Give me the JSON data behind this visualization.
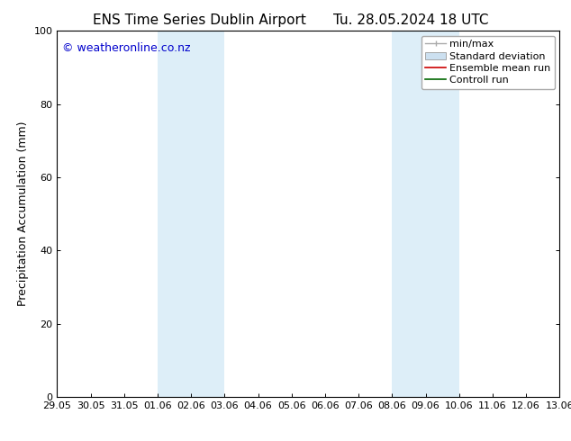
{
  "title_left": "ENS Time Series Dublin Airport",
  "title_right": "Tu. 28.05.2024 18 UTC",
  "ylabel": "Precipitation Accumulation (mm)",
  "ylim": [
    0,
    100
  ],
  "yticks": [
    0,
    20,
    40,
    60,
    80,
    100
  ],
  "watermark": "© weatheronline.co.nz",
  "watermark_color": "#0000cc",
  "background_color": "#ffffff",
  "plot_bg_color": "#ffffff",
  "shaded_color": "#ddeef8",
  "shaded_regions": [
    {
      "xstart": "01.06",
      "xend": "03.06"
    },
    {
      "xstart": "08.06",
      "xend": "10.06"
    }
  ],
  "x_tick_labels": [
    "29.05",
    "30.05",
    "31.05",
    "01.06",
    "02.06",
    "03.06",
    "04.06",
    "05.06",
    "06.06",
    "07.06",
    "08.06",
    "09.06",
    "10.06",
    "11.06",
    "12.06",
    "13.06"
  ],
  "legend_entries": [
    {
      "label": "min/max",
      "color": "#aaaaaa",
      "ltype": "line_with_caps"
    },
    {
      "label": "Standard deviation",
      "color": "#cce0f0",
      "ltype": "filled_box"
    },
    {
      "label": "Ensemble mean run",
      "color": "#cc0000",
      "ltype": "line"
    },
    {
      "label": "Controll run",
      "color": "#006600",
      "ltype": "line"
    }
  ],
  "title_fontsize": 11,
  "axis_fontsize": 9,
  "tick_fontsize": 8,
  "legend_fontsize": 8
}
